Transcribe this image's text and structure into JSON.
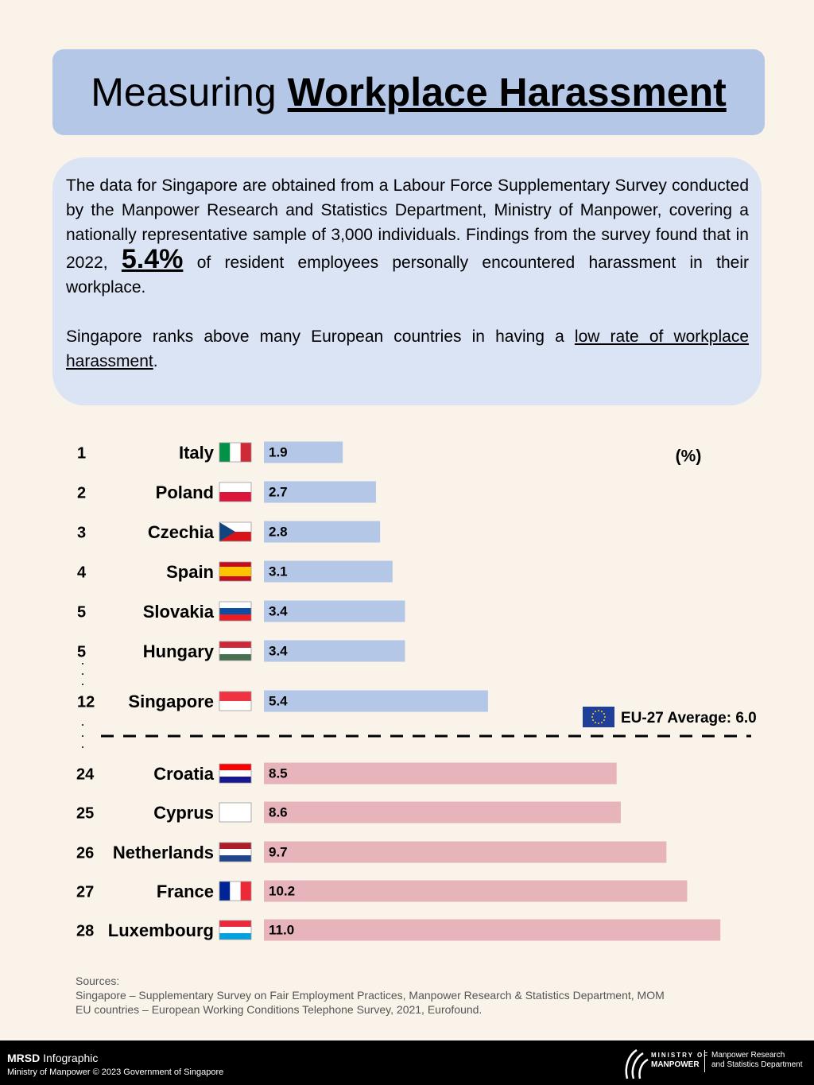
{
  "header": {
    "title_plain": "Measuring",
    "title_bold": "Workplace Harassment"
  },
  "intro": {
    "p1_before": "The data for Singapore are obtained from a Labour Force Supplementary Survey conducted by the Manpower Research and Statistics Department, Ministry of Manpower, covering a nationally representative sample of 3,000 individuals. Findings from the survey found that in 2022,",
    "highlight": "5.4%",
    "p1_after": "of resident employees personally encountered harassment in their workplace.",
    "p2_before": "Singapore ranks above many European countries in having a",
    "p2_link": "low rate of workplace harassment",
    "p2_after": "."
  },
  "chart_data": {
    "type": "bar",
    "orientation": "horizontal",
    "unit_label": "(%)",
    "ranks": [
      1,
      2,
      3,
      4,
      5,
      5,
      12,
      24,
      25,
      26,
      27,
      28
    ],
    "categories": [
      "Italy",
      "Poland",
      "Czechia",
      "Spain",
      "Slovakia",
      "Hungary",
      "Singapore",
      "Croatia",
      "Cyprus",
      "Netherlands",
      "France",
      "Luxembourg"
    ],
    "values": [
      1.9,
      2.7,
      2.8,
      3.1,
      3.4,
      3.4,
      5.4,
      8.5,
      8.6,
      9.7,
      10.2,
      11.0
    ],
    "value_labels": [
      "1.9",
      "2.7",
      "2.8",
      "3.1",
      "3.4",
      "3.4",
      "5.4",
      "8.5",
      "8.6",
      "9.7",
      "10.2",
      "11.0"
    ],
    "color_below_average": "#b4c7e7",
    "color_above_average": "#e8b4bc",
    "average": {
      "label": "EU-27 Average:",
      "value": {
        "value": 6,
        "label": "6.0"
      }
    }
  },
  "sources": {
    "heading": "Sources:",
    "lines": [
      "Singapore – Supplementary Survey on Fair Employment Practices, Manpower Research & Statistics Department, MOM",
      "EU countries – European Working Conditions Telephone Survey, 2021, Eurofound."
    ]
  },
  "footer": {
    "brand_bold": "MRSD",
    "brand_rest": "Infographic",
    "copyright": "Ministry of Manpower © 2023 Government of Singapore",
    "logo_line1": "MINISTRY OF",
    "logo_line2": "MANPOWER",
    "dept_line1": "Manpower Research",
    "dept_line2": "and Statistics Department"
  }
}
